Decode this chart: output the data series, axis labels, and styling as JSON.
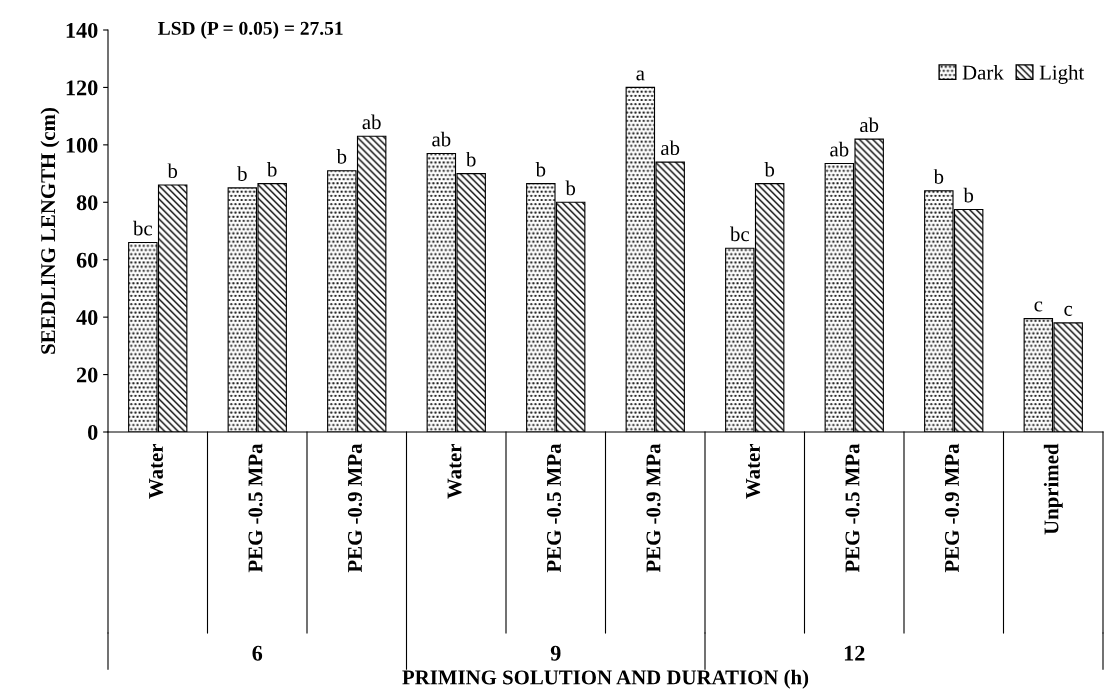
{
  "chart_data": {
    "type": "bar",
    "categories": [
      "Water",
      "PEG -0.5 MPa",
      "PEG -0.9 MPa",
      "Water",
      "PEG -0.5 MPa",
      "PEG -0.9 MPa",
      "Water",
      "PEG -0.5 MPa",
      "PEG -0.9 MPa",
      "Unprimed"
    ],
    "series": [
      {
        "name": "Dark",
        "color": "#000000",
        "values": [
          66,
          85,
          91,
          97,
          86.5,
          120,
          64,
          93.5,
          84,
          39.5
        ],
        "value_labels": [
          "bc",
          "b",
          "b",
          "ab",
          "b",
          "a",
          "bc",
          "ab",
          "b",
          "c"
        ]
      },
      {
        "name": "Light",
        "color": "#000000",
        "values": [
          86,
          86.5,
          103,
          90,
          80,
          94,
          86.5,
          102,
          77.5,
          38
        ],
        "value_labels": [
          "b",
          "b",
          "ab",
          "b",
          "b",
          "ab",
          "b",
          "ab",
          "b",
          "c"
        ]
      }
    ],
    "ylabel": "SEEDLING LENGTH (cm)",
    "xlabel": "PRIMING SOLUTION AND DURATION (h)",
    "annotations": [
      "LSD (P = 0.05) = 27.51",
      "6",
      "9",
      "12"
    ],
    "ylim": [
      0,
      140
    ],
    "yticks": [
      0,
      20,
      40,
      60,
      80,
      100,
      120,
      140
    ],
    "grid": false,
    "legend": "top right"
  }
}
